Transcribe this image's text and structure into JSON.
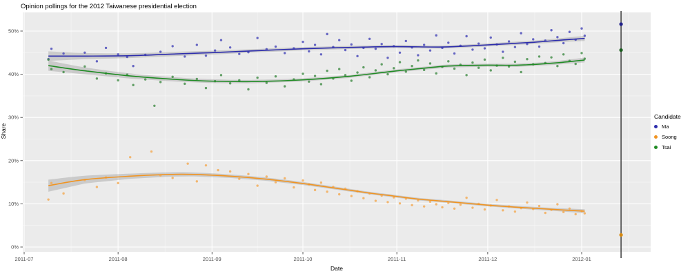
{
  "title": "Opinion pollings for the 2012 Taiwanese presidential election",
  "legend": {
    "title": "Candidate",
    "items": [
      {
        "label": "Ma"
      },
      {
        "label": "Soong"
      },
      {
        "label": "Tsai"
      }
    ]
  },
  "colors": {
    "panel_background": "#ebebeb",
    "grid_major": "#ffffff",
    "grid_minor": "rgba(255,255,255,0.55)",
    "axis_text": "#4d4d4d",
    "tick_mark": "#333333",
    "confidence_band": "rgba(125,125,125,0.30)",
    "election_line": "#4a4a4a"
  },
  "chart_data": {
    "type": "scatter",
    "title": "Opinion pollings for the 2012 Taiwanese presidential election",
    "xlabel": "Date",
    "ylabel": "Share",
    "x_unit": "days_since_2011-07-01",
    "xlim_days": [
      -0.5,
      206.8
    ],
    "ylim": [
      -1.1,
      54.3
    ],
    "x_ticks": [
      {
        "label": "2011-07",
        "day": 0
      },
      {
        "label": "2011-08",
        "day": 31
      },
      {
        "label": "2011-09",
        "day": 62
      },
      {
        "label": "2011-10",
        "day": 92
      },
      {
        "label": "2011-11",
        "day": 123
      },
      {
        "label": "2011-12",
        "day": 153
      },
      {
        "label": "2012-01",
        "day": 184
      }
    ],
    "x_minor_days": [
      15.5,
      46.5,
      77,
      107.5,
      138,
      168.5,
      199.5
    ],
    "y_ticks": [
      {
        "label": "0%",
        "value": 0
      },
      {
        "label": "10%",
        "value": 10
      },
      {
        "label": "20%",
        "value": 20
      },
      {
        "label": "30%",
        "value": 30
      },
      {
        "label": "40%",
        "value": 40
      },
      {
        "label": "50%",
        "value": 50
      }
    ],
    "y_minor_values": [
      5,
      15,
      25,
      35,
      45
    ],
    "legend_position": "right",
    "series": [
      {
        "name": "Ma",
        "line_color": "#2d2dac",
        "point_color": "#4343b8",
        "trend": [
          [
            8,
            44.2,
            1.1
          ],
          [
            20,
            44.2,
            0.7
          ],
          [
            35,
            44.3,
            0.55
          ],
          [
            50,
            44.7,
            0.5
          ],
          [
            62,
            45.0,
            0.45
          ],
          [
            75,
            45.4,
            0.4
          ],
          [
            92,
            45.9,
            0.38
          ],
          [
            107,
            46.2,
            0.35
          ],
          [
            122,
            46.4,
            0.35
          ],
          [
            137,
            46.3,
            0.35
          ],
          [
            145,
            46.5,
            0.35
          ],
          [
            153,
            46.8,
            0.35
          ],
          [
            168,
            47.4,
            0.4
          ],
          [
            177,
            47.9,
            0.45
          ],
          [
            185,
            48.3,
            0.6
          ]
        ],
        "points": [
          [
            8,
            43.5
          ],
          [
            9,
            45.9
          ],
          [
            13,
            44.8
          ],
          [
            20,
            45.0
          ],
          [
            24,
            43.0
          ],
          [
            27,
            46.1
          ],
          [
            31,
            44.6
          ],
          [
            34,
            44.0
          ],
          [
            36,
            41.9
          ],
          [
            40,
            44.5
          ],
          [
            45,
            45.2
          ],
          [
            49,
            46.5
          ],
          [
            53,
            44.1
          ],
          [
            57,
            46.8
          ],
          [
            60,
            44.3
          ],
          [
            63,
            45.5
          ],
          [
            65,
            47.9
          ],
          [
            68,
            46.2
          ],
          [
            71,
            44.7
          ],
          [
            74,
            45.1
          ],
          [
            77,
            48.4
          ],
          [
            80,
            45.8
          ],
          [
            83,
            46.4
          ],
          [
            86,
            44.9
          ],
          [
            89,
            46.0
          ],
          [
            92,
            47.5
          ],
          [
            94,
            45.3
          ],
          [
            96,
            46.8
          ],
          [
            98,
            44.6
          ],
          [
            100,
            49.3
          ],
          [
            102,
            46.3
          ],
          [
            104,
            47.9
          ],
          [
            106,
            45.6
          ],
          [
            108,
            46.9
          ],
          [
            110,
            44.2
          ],
          [
            112,
            46.1
          ],
          [
            114,
            48.2
          ],
          [
            116,
            45.9
          ],
          [
            118,
            47.0
          ],
          [
            120,
            43.8
          ],
          [
            122,
            46.5
          ],
          [
            124,
            45.0
          ],
          [
            126,
            47.7
          ],
          [
            128,
            46.2
          ],
          [
            130,
            44.4
          ],
          [
            132,
            46.8
          ],
          [
            134,
            45.5
          ],
          [
            136,
            49.0
          ],
          [
            138,
            46.1
          ],
          [
            140,
            47.3
          ],
          [
            142,
            44.8
          ],
          [
            144,
            46.6
          ],
          [
            146,
            48.8
          ],
          [
            148,
            45.7
          ],
          [
            150,
            47.1
          ],
          [
            152,
            46.0
          ],
          [
            154,
            48.5
          ],
          [
            156,
            46.9
          ],
          [
            158,
            45.2
          ],
          [
            160,
            47.6
          ],
          [
            162,
            46.3
          ],
          [
            164,
            49.5
          ],
          [
            166,
            47.0
          ],
          [
            168,
            48.1
          ],
          [
            170,
            46.4
          ],
          [
            172,
            47.8
          ],
          [
            174,
            50.2
          ],
          [
            176,
            48.6
          ],
          [
            178,
            47.2
          ],
          [
            180,
            49.8
          ],
          [
            182,
            48.0
          ],
          [
            184,
            50.6
          ],
          [
            185,
            48.9
          ]
        ]
      },
      {
        "name": "Soong",
        "line_color": "#f09422",
        "point_color": "#f4a950",
        "trend": [
          [
            8,
            14.2,
            1.4
          ],
          [
            20,
            15.6,
            0.9
          ],
          [
            35,
            16.4,
            0.6
          ],
          [
            48,
            16.8,
            0.5
          ],
          [
            56,
            16.8,
            0.45
          ],
          [
            68,
            16.4,
            0.4
          ],
          [
            80,
            15.7,
            0.38
          ],
          [
            92,
            14.7,
            0.35
          ],
          [
            100,
            13.9,
            0.33
          ],
          [
            107,
            13.2,
            0.32
          ],
          [
            115,
            12.4,
            0.3
          ],
          [
            122,
            11.8,
            0.3
          ],
          [
            130,
            11.1,
            0.3
          ],
          [
            140,
            10.5,
            0.3
          ],
          [
            153,
            9.7,
            0.3
          ],
          [
            163,
            9.2,
            0.32
          ],
          [
            175,
            8.7,
            0.35
          ],
          [
            185,
            8.3,
            0.45
          ]
        ],
        "points": [
          [
            8,
            11.0
          ],
          [
            9,
            14.8
          ],
          [
            13,
            12.4
          ],
          [
            20,
            15.5
          ],
          [
            24,
            13.9
          ],
          [
            27,
            16.1
          ],
          [
            31,
            14.8
          ],
          [
            35,
            20.8
          ],
          [
            42,
            22.1
          ],
          [
            45,
            16.6
          ],
          [
            49,
            16.0
          ],
          [
            54,
            19.3
          ],
          [
            57,
            15.2
          ],
          [
            60,
            18.9
          ],
          [
            64,
            17.8
          ],
          [
            68,
            17.5
          ],
          [
            71,
            15.8
          ],
          [
            74,
            16.9
          ],
          [
            77,
            14.2
          ],
          [
            80,
            16.3
          ],
          [
            83,
            15.0
          ],
          [
            86,
            15.9
          ],
          [
            89,
            13.8
          ],
          [
            92,
            15.4
          ],
          [
            94,
            14.5
          ],
          [
            96,
            13.2
          ],
          [
            98,
            14.9
          ],
          [
            100,
            12.8
          ],
          [
            102,
            13.9
          ],
          [
            104,
            12.2
          ],
          [
            106,
            13.5
          ],
          [
            108,
            11.8
          ],
          [
            110,
            12.9
          ],
          [
            112,
            11.3
          ],
          [
            114,
            12.4
          ],
          [
            116,
            10.7
          ],
          [
            118,
            11.9
          ],
          [
            120,
            10.4
          ],
          [
            122,
            11.5
          ],
          [
            124,
            10.1
          ],
          [
            126,
            11.2
          ],
          [
            128,
            9.7
          ],
          [
            130,
            10.8
          ],
          [
            132,
            9.4
          ],
          [
            134,
            10.5
          ],
          [
            136,
            9.9
          ],
          [
            138,
            9.2
          ],
          [
            140,
            10.2
          ],
          [
            142,
            8.9
          ],
          [
            144,
            9.8
          ],
          [
            146,
            11.4
          ],
          [
            148,
            9.1
          ],
          [
            150,
            10.0
          ],
          [
            152,
            8.7
          ],
          [
            154,
            9.6
          ],
          [
            156,
            10.9
          ],
          [
            158,
            8.5
          ],
          [
            160,
            9.4
          ],
          [
            162,
            8.2
          ],
          [
            164,
            9.0
          ],
          [
            166,
            10.3
          ],
          [
            168,
            8.8
          ],
          [
            170,
            9.5
          ],
          [
            172,
            7.9
          ],
          [
            174,
            8.6
          ],
          [
            176,
            9.9
          ],
          [
            178,
            8.1
          ],
          [
            180,
            8.9
          ],
          [
            182,
            7.6
          ],
          [
            184,
            8.3
          ],
          [
            185,
            7.8
          ]
        ]
      },
      {
        "name": "Tsai",
        "line_color": "#1f8b24",
        "point_color": "#3e8b44",
        "trend": [
          [
            8,
            42.0,
            1.2
          ],
          [
            20,
            40.8,
            0.8
          ],
          [
            35,
            39.6,
            0.6
          ],
          [
            50,
            38.8,
            0.5
          ],
          [
            62,
            38.4,
            0.45
          ],
          [
            75,
            38.3,
            0.4
          ],
          [
            92,
            38.7,
            0.38
          ],
          [
            107,
            39.5,
            0.36
          ],
          [
            122,
            40.7,
            0.35
          ],
          [
            132,
            41.4,
            0.35
          ],
          [
            140,
            41.9,
            0.35
          ],
          [
            153,
            42.1,
            0.35
          ],
          [
            163,
            42.1,
            0.38
          ],
          [
            175,
            42.6,
            0.42
          ],
          [
            185,
            43.3,
            0.55
          ]
        ],
        "points": [
          [
            8,
            43.4
          ],
          [
            9,
            41.2
          ],
          [
            13,
            40.5
          ],
          [
            20,
            41.8
          ],
          [
            24,
            39.0
          ],
          [
            27,
            40.2
          ],
          [
            31,
            38.6
          ],
          [
            34,
            39.9
          ],
          [
            36,
            37.5
          ],
          [
            40,
            38.8
          ],
          [
            43,
            32.7
          ],
          [
            45,
            38.2
          ],
          [
            49,
            39.4
          ],
          [
            53,
            37.8
          ],
          [
            57,
            38.9
          ],
          [
            60,
            36.8
          ],
          [
            63,
            38.4
          ],
          [
            65,
            39.8
          ],
          [
            68,
            37.9
          ],
          [
            71,
            38.6
          ],
          [
            74,
            36.5
          ],
          [
            77,
            39.2
          ],
          [
            80,
            38.0
          ],
          [
            83,
            39.5
          ],
          [
            86,
            37.2
          ],
          [
            89,
            38.8
          ],
          [
            92,
            40.1
          ],
          [
            94,
            38.3
          ],
          [
            96,
            39.6
          ],
          [
            98,
            37.7
          ],
          [
            100,
            40.8
          ],
          [
            102,
            39.0
          ],
          [
            104,
            41.2
          ],
          [
            106,
            39.8
          ],
          [
            108,
            38.5
          ],
          [
            110,
            40.4
          ],
          [
            112,
            41.6
          ],
          [
            114,
            39.3
          ],
          [
            116,
            40.9
          ],
          [
            118,
            42.3
          ],
          [
            120,
            40.0
          ],
          [
            122,
            41.4
          ],
          [
            124,
            42.8
          ],
          [
            126,
            40.6
          ],
          [
            128,
            41.9
          ],
          [
            130,
            43.2
          ],
          [
            132,
            41.0
          ],
          [
            134,
            42.5
          ],
          [
            136,
            40.2
          ],
          [
            138,
            41.7
          ],
          [
            140,
            43.0
          ],
          [
            142,
            41.3
          ],
          [
            144,
            42.2
          ],
          [
            146,
            39.8
          ],
          [
            148,
            42.7
          ],
          [
            150,
            41.5
          ],
          [
            152,
            43.4
          ],
          [
            154,
            40.9
          ],
          [
            156,
            42.0
          ],
          [
            158,
            43.8
          ],
          [
            160,
            41.8
          ],
          [
            162,
            42.9
          ],
          [
            164,
            40.5
          ],
          [
            166,
            43.5
          ],
          [
            168,
            42.3
          ],
          [
            170,
            44.1
          ],
          [
            172,
            42.6
          ],
          [
            174,
            43.9
          ],
          [
            176,
            41.9
          ],
          [
            178,
            44.6
          ],
          [
            180,
            43.1
          ],
          [
            182,
            42.4
          ],
          [
            184,
            44.9
          ],
          [
            185,
            43.6
          ]
        ]
      }
    ],
    "election_marker": {
      "day": 197,
      "results": [
        {
          "candidate": "Ma",
          "share_pct": 51.6,
          "color": "#20208a"
        },
        {
          "candidate": "Tsai",
          "share_pct": 45.6,
          "color": "#1b5e20"
        },
        {
          "candidate": "Soong",
          "share_pct": 2.8,
          "color": "#d68910"
        }
      ]
    }
  }
}
